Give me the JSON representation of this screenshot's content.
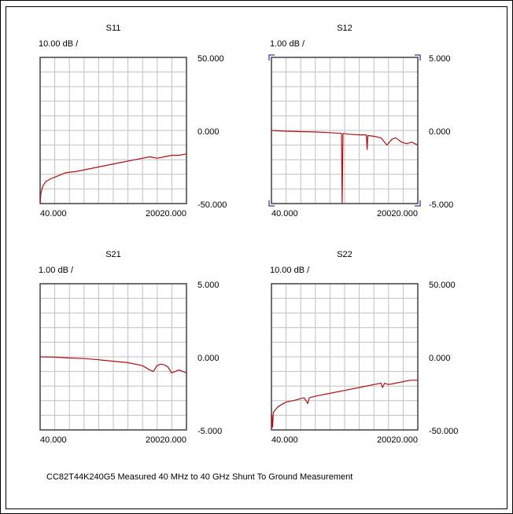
{
  "caption": "CC82T44K240G5 Measured 40 MHz to 40 GHz Shunt To Ground Measurement",
  "colors": {
    "trace": "#b01010",
    "grid": "#c0c0c0",
    "axis": "#404040",
    "marker": "#3a3aa0"
  },
  "chart_data": [
    {
      "type": "line",
      "title": "S11",
      "scale_label": "10.00 dB /",
      "ylim": [
        -50,
        50
      ],
      "y_tick_labels": [
        "50.000",
        "0.000",
        "-50.000"
      ],
      "x_tick_labels": [
        "40.000",
        "20020.000"
      ],
      "xlim": [
        40,
        20020
      ],
      "grid": true,
      "series": [
        {
          "x": [
            40,
            150,
            400,
            800,
            1500,
            2500,
            3500,
            5000,
            7000,
            9000,
            11000,
            13000,
            15000,
            16000,
            17000,
            18000,
            19000,
            20020
          ],
          "y": [
            -50,
            -43,
            -38,
            -35,
            -33,
            -31,
            -29,
            -28,
            -26,
            -24,
            -22,
            -20,
            -18,
            -19,
            -18,
            -17,
            -17,
            -16
          ]
        }
      ]
    },
    {
      "type": "line",
      "title": "S12",
      "scale_label": "1.00 dB /",
      "ylim": [
        -5,
        5
      ],
      "y_tick_labels": [
        "5.000",
        "0.000",
        "-5.000"
      ],
      "x_tick_labels": [
        "40.000",
        "20020.000"
      ],
      "xlim": [
        40,
        20020
      ],
      "grid": true,
      "marker_brackets": true,
      "series": [
        {
          "x": [
            40,
            2000,
            4000,
            6000,
            8000,
            9600,
            9700,
            9800,
            9900,
            10500,
            12000,
            13000,
            13100,
            13200,
            14000,
            15000,
            15800,
            16500,
            17000,
            17800,
            18500,
            19200,
            20020
          ],
          "y": [
            0,
            -0.05,
            -0.08,
            -0.1,
            -0.15,
            -0.2,
            -5,
            -0.25,
            -0.2,
            -0.25,
            -0.3,
            -0.3,
            -1.3,
            -0.35,
            -0.4,
            -0.5,
            -1.0,
            -0.6,
            -0.5,
            -0.8,
            -0.9,
            -0.8,
            -1.0
          ]
        }
      ]
    },
    {
      "type": "line",
      "title": "S21",
      "scale_label": "1.00 dB /",
      "ylim": [
        -5,
        5
      ],
      "y_tick_labels": [
        "5.000",
        "0.000",
        "-5.000"
      ],
      "x_tick_labels": [
        "40.000",
        "20020.000"
      ],
      "xlim": [
        40,
        20020
      ],
      "grid": true,
      "series": [
        {
          "x": [
            40,
            2000,
            4000,
            6000,
            8000,
            10000,
            12000,
            14000,
            15000,
            15500,
            16000,
            16500,
            17000,
            17500,
            18000,
            18500,
            19000,
            20020
          ],
          "y": [
            0,
            -0.02,
            -0.08,
            -0.12,
            -0.2,
            -0.3,
            -0.4,
            -0.6,
            -0.9,
            -1.0,
            -0.6,
            -0.5,
            -0.55,
            -0.7,
            -1.1,
            -1.0,
            -0.9,
            -1.1
          ]
        }
      ]
    },
    {
      "type": "line",
      "title": "S22",
      "scale_label": "10.00 dB /",
      "ylim": [
        -50,
        50
      ],
      "y_tick_labels": [
        "50.000",
        "0.000",
        "-50.000"
      ],
      "x_tick_labels": [
        "40.000",
        "20020.000"
      ],
      "xlim": [
        40,
        20020
      ],
      "grid": true,
      "series": [
        {
          "x": [
            40,
            100,
            200,
            300,
            600,
            1000,
            2000,
            3000,
            4500,
            5000,
            5200,
            6000,
            8000,
            10000,
            12000,
            14000,
            15000,
            15200,
            15500,
            16000,
            17000,
            18000,
            19000,
            20020
          ],
          "y": [
            -50,
            -40,
            -48,
            -38,
            -36,
            -34,
            -31,
            -30,
            -28,
            -32,
            -28,
            -27,
            -25,
            -23,
            -21,
            -19,
            -18,
            -21,
            -18,
            -19,
            -18,
            -17,
            -16,
            -16
          ]
        }
      ]
    }
  ]
}
